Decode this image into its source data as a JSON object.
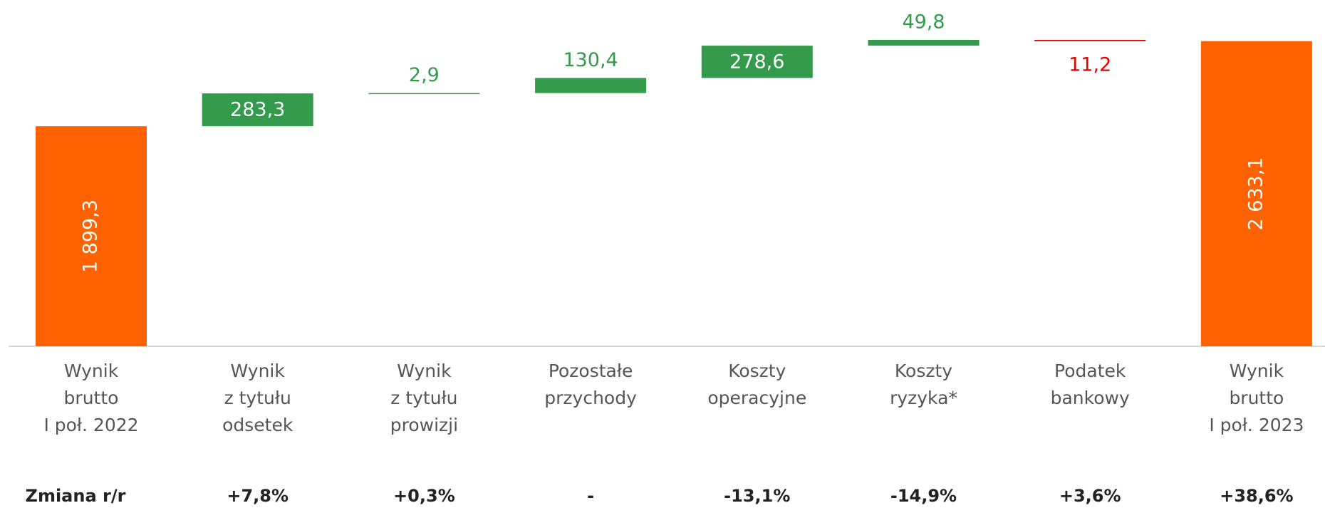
{
  "chart_data": {
    "type": "waterfall",
    "categories": [
      [
        "Wynik",
        "brutto",
        "I poł. 2022"
      ],
      [
        "Wynik",
        "z tytułu",
        "odsetek"
      ],
      [
        "Wynik",
        "z tytułu",
        "prowizji"
      ],
      [
        "Pozostałe",
        "przychody"
      ],
      [
        "Koszty",
        "operacyjne"
      ],
      [
        "Koszty",
        "ryzyka*"
      ],
      [
        "Podatek",
        "bankowy"
      ],
      [
        "Wynik",
        "brutto",
        "I poł. 2023"
      ]
    ],
    "measure": [
      "total",
      "relative",
      "relative",
      "relative",
      "relative",
      "relative",
      "relative",
      "total"
    ],
    "values": [
      1899.3,
      283.3,
      2.9,
      130.4,
      278.6,
      49.8,
      -11.2,
      2633.1
    ],
    "value_labels": [
      "1 899,3",
      "283,3",
      "2,9",
      "130,4",
      "278,6",
      "49,8",
      "11,2",
      "2 633,1"
    ],
    "colors": {
      "total": "#ff6200",
      "increase": "#349a4c",
      "decrease": "#e60000"
    },
    "change_title": "Zmiana r/r",
    "changes": [
      "+7,8%",
      "+0,3%",
      "-",
      "-13,1%",
      "-14,9%",
      "+3,6%",
      "+38,6%"
    ]
  }
}
